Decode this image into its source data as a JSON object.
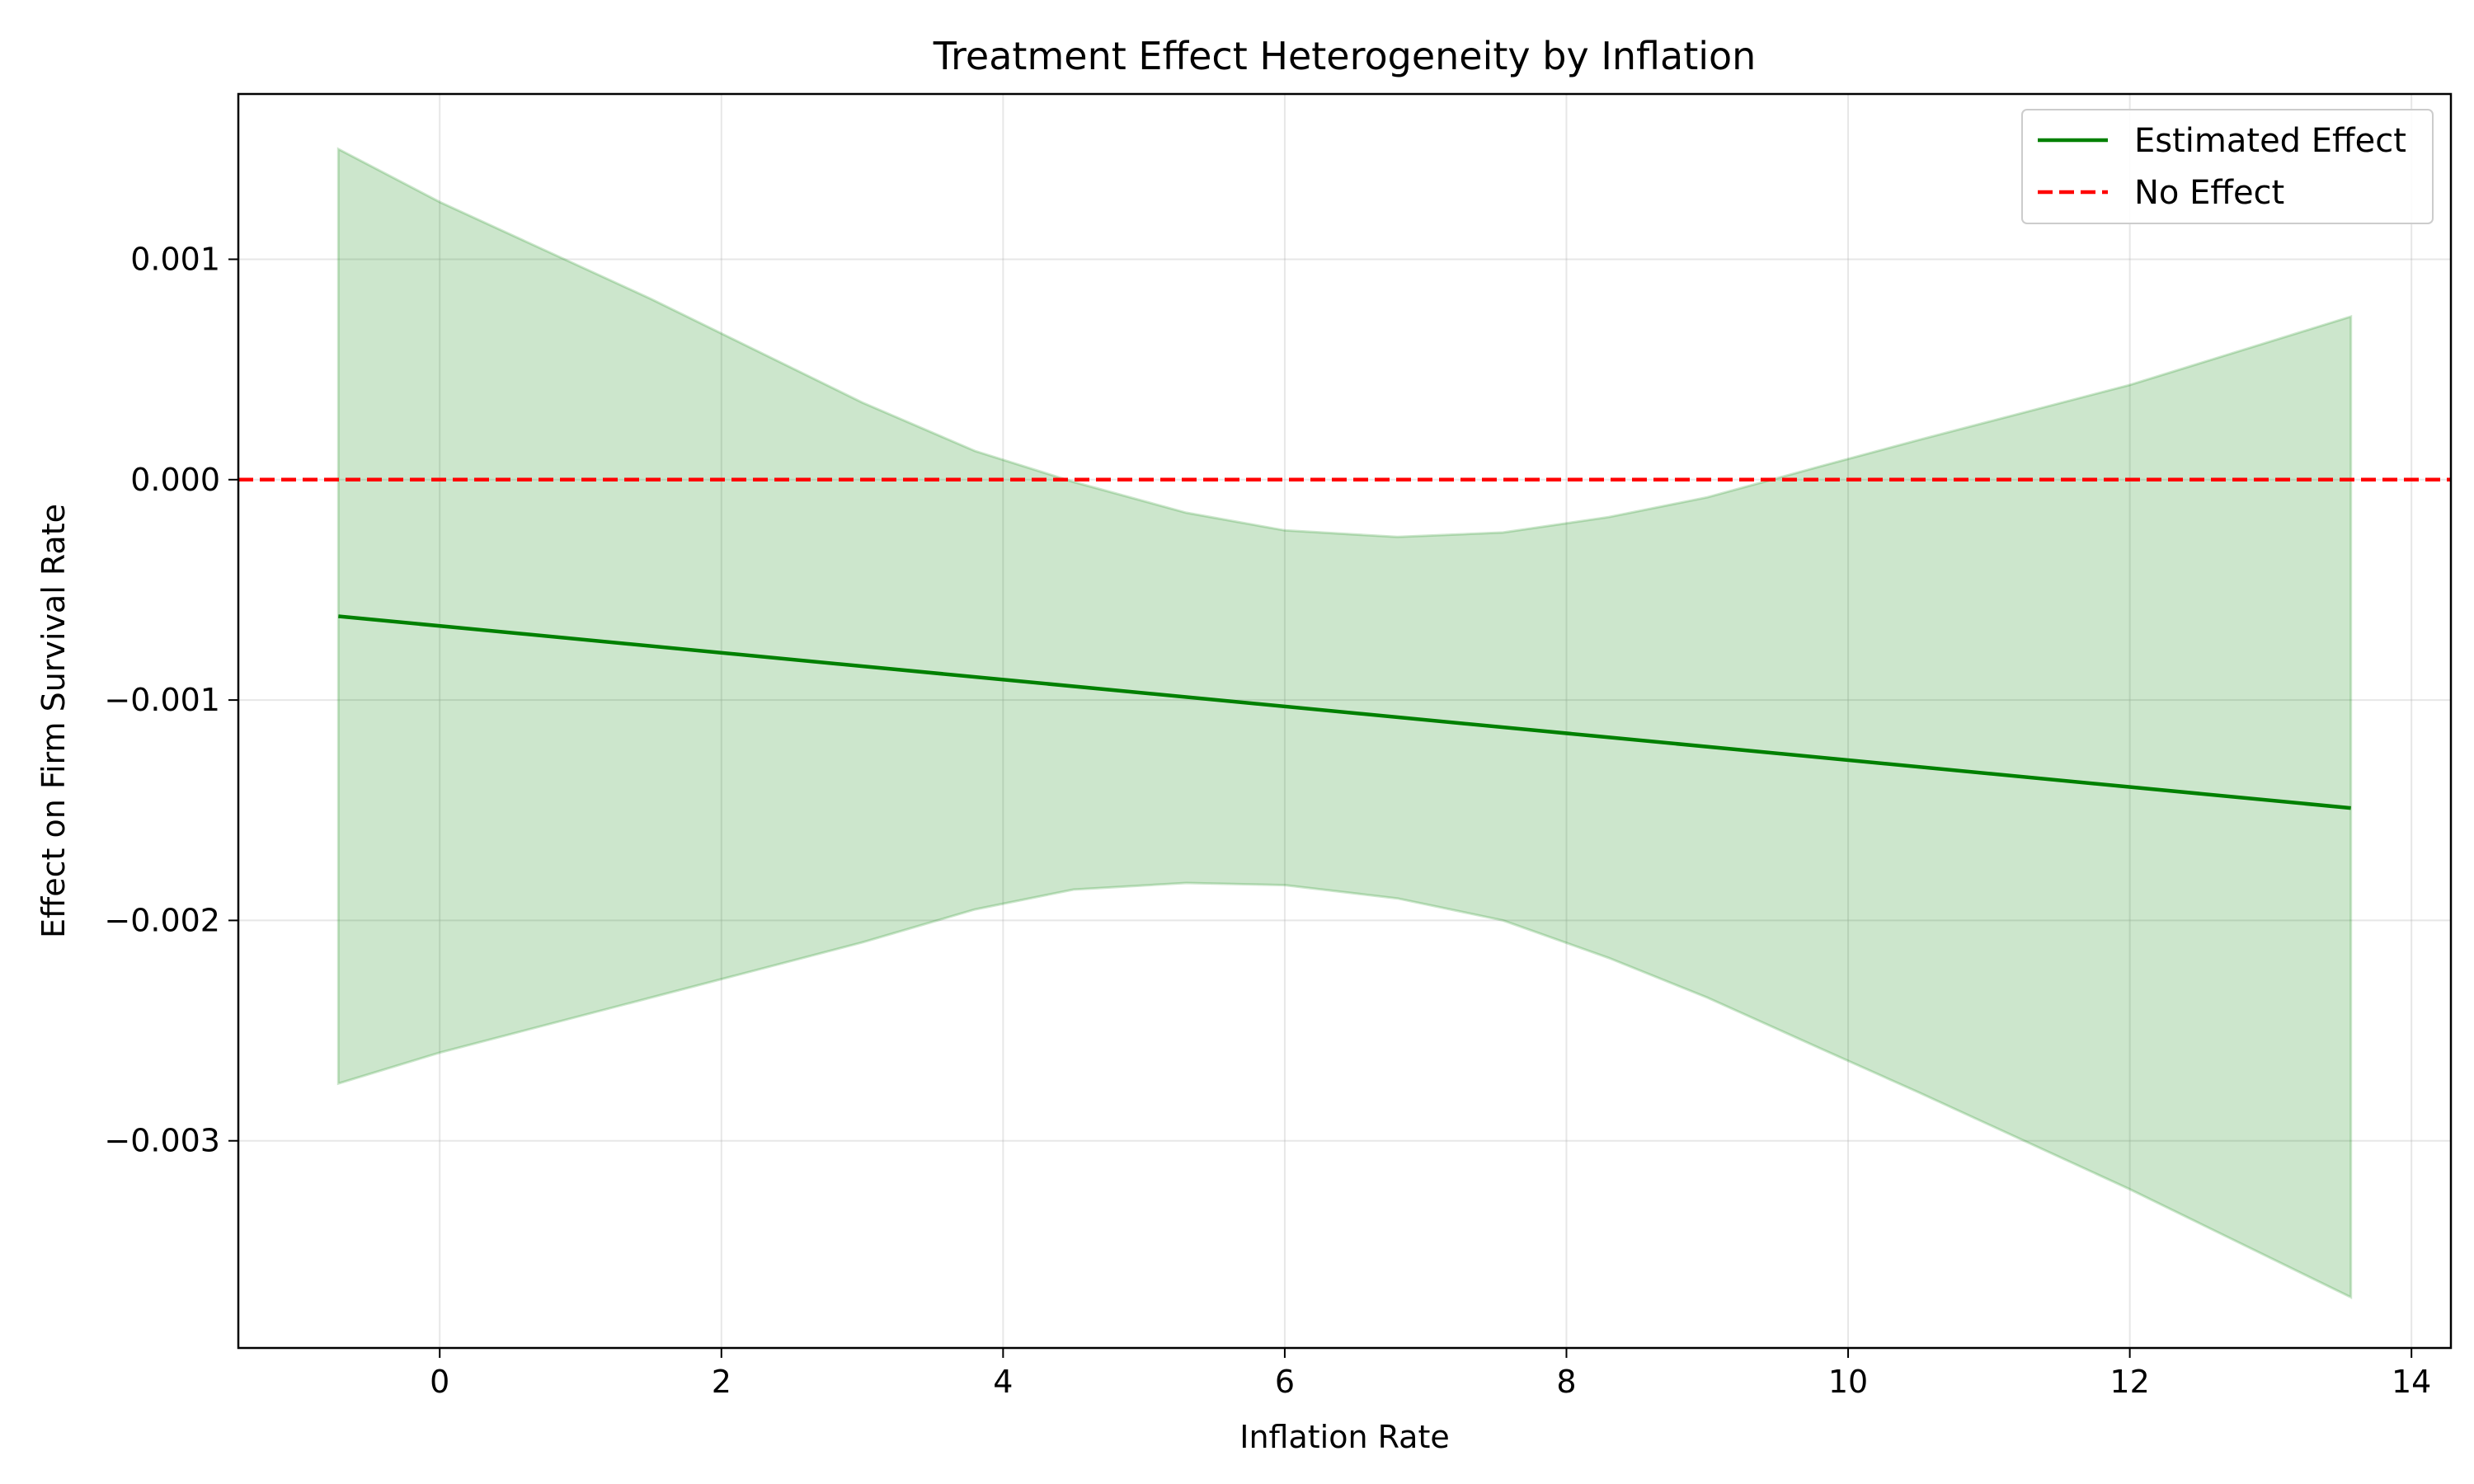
{
  "chart_data": {
    "type": "line",
    "title": "Treatment Effect Heterogeneity by Inflation",
    "xlabel": "Inflation Rate",
    "ylabel": "Effect on Firm Survival Rate",
    "xlim": [
      -1.43,
      14.28
    ],
    "ylim": [
      -0.00394,
      0.00175
    ],
    "xticks": [
      0,
      2,
      4,
      6,
      8,
      10,
      12,
      14
    ],
    "xtick_labels": [
      "0",
      "2",
      "4",
      "6",
      "8",
      "10",
      "12",
      "14"
    ],
    "yticks": [
      0.001,
      0.0,
      -0.001,
      -0.002,
      -0.003
    ],
    "ytick_labels": [
      "0.001",
      "0.000",
      "−0.001",
      "−0.002",
      "−0.003"
    ],
    "grid": true,
    "legend_position": "top-right",
    "series": [
      {
        "name": "Estimated Effect",
        "style": "solid",
        "color": "#008000",
        "x": [
          -0.72,
          13.57
        ],
        "y": [
          -0.00062,
          -0.00149
        ]
      },
      {
        "name": "No Effect",
        "style": "dashed",
        "color": "#ff0000",
        "hline": 0.0
      }
    ],
    "confidence_band": {
      "color": "#008000",
      "x": [
        -0.72,
        0.0,
        1.5,
        3.0,
        3.8,
        4.5,
        5.3,
        6.0,
        6.8,
        7.55,
        8.3,
        9.0,
        9.8,
        10.5,
        12.0,
        13.57
      ],
      "upper": [
        0.0015,
        0.00126,
        0.00082,
        0.00035,
        0.00013,
        -1e-05,
        -0.00015,
        -0.00023,
        -0.00026,
        -0.00024,
        -0.00017,
        -8e-05,
        6e-05,
        0.00018,
        0.00043,
        0.00074
      ],
      "lower": [
        -0.00274,
        -0.0026,
        -0.00235,
        -0.0021,
        -0.00195,
        -0.00186,
        -0.00183,
        -0.00184,
        -0.0019,
        -0.002,
        -0.00217,
        -0.00235,
        -0.00258,
        -0.00278,
        -0.00322,
        -0.00371
      ]
    }
  }
}
